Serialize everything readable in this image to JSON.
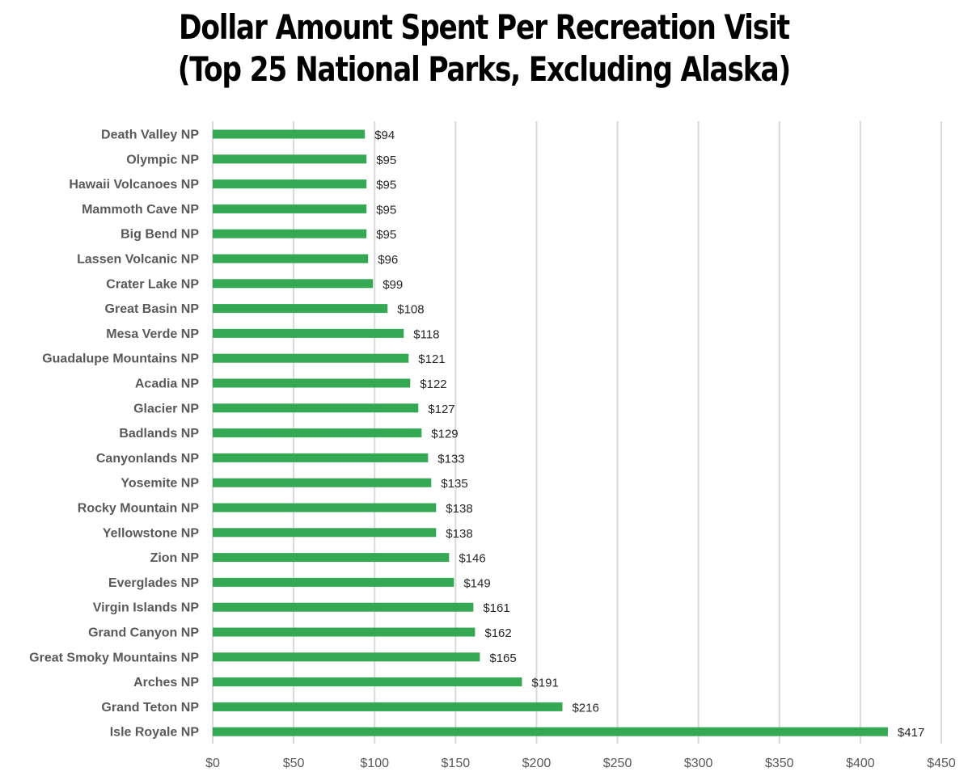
{
  "chart_data": {
    "type": "bar",
    "orientation": "horizontal",
    "title": "Dollar Amount Spent Per Recreation Visit",
    "subtitle": "(Top 25 National Parks, Excluding Alaska)",
    "categories": [
      "Death Valley NP",
      "Olympic NP",
      "Hawaii Volcanoes NP",
      "Mammoth Cave NP",
      "Big Bend NP",
      "Lassen Volcanic NP",
      "Crater Lake NP",
      "Great Basin NP",
      "Mesa Verde NP",
      "Guadalupe Mountains NP",
      "Acadia NP",
      "Glacier NP",
      "Badlands NP",
      "Canyonlands NP",
      "Yosemite NP",
      "Rocky Mountain NP",
      "Yellowstone NP",
      "Zion NP",
      "Everglades NP",
      "Virgin Islands NP",
      "Grand Canyon NP",
      "Great Smoky Mountains NP",
      "Arches NP",
      "Grand Teton NP",
      "Isle Royale NP"
    ],
    "values": [
      94,
      95,
      95,
      95,
      95,
      96,
      99,
      108,
      118,
      121,
      122,
      127,
      129,
      133,
      135,
      138,
      138,
      146,
      149,
      161,
      162,
      165,
      191,
      216,
      417
    ],
    "value_labels": [
      "$94",
      "$95",
      "$95",
      "$95",
      "$95",
      "$96",
      "$99",
      "$108",
      "$118",
      "$121",
      "$122",
      "$127",
      "$129",
      "$133",
      "$135",
      "$138",
      "$138",
      "$146",
      "$149",
      "$161",
      "$162",
      "$165",
      "$191",
      "$216",
      "$417"
    ],
    "xlim": [
      0,
      450
    ],
    "xticks": [
      0,
      50,
      100,
      150,
      200,
      250,
      300,
      350,
      400,
      450
    ],
    "xtick_labels": [
      "$0",
      "$50",
      "$100",
      "$150",
      "$200",
      "$250",
      "$300",
      "$350",
      "$400",
      "$450"
    ],
    "xlabel": "",
    "ylabel": "",
    "grid": "vertical",
    "legend": "none",
    "bar_color": "#35a853"
  }
}
